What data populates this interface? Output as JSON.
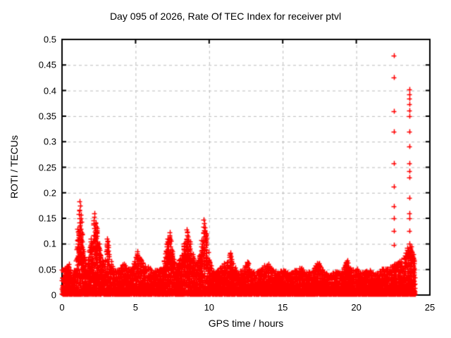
{
  "page": {
    "background": "#ffffff"
  },
  "chart_data": {
    "type": "scatter",
    "title": "Day 095 of 2026, Rate Of TEC Index for receiver ptvl",
    "xlabel": "GPS time / hours",
    "ylabel": "ROTI / TECUs",
    "xlim": [
      0,
      25
    ],
    "ylim": [
      0,
      0.5
    ],
    "xticks": [
      {
        "v": 0,
        "label": "0"
      },
      {
        "v": 5,
        "label": "5"
      },
      {
        "v": 10,
        "label": "10"
      },
      {
        "v": 15,
        "label": "15"
      },
      {
        "v": 20,
        "label": "20"
      },
      {
        "v": 25,
        "label": "25"
      }
    ],
    "yticks": [
      {
        "v": 0,
        "label": "0"
      },
      {
        "v": 0.05,
        "label": "0.05"
      },
      {
        "v": 0.1,
        "label": "0.1"
      },
      {
        "v": 0.15,
        "label": "0.15"
      },
      {
        "v": 0.2,
        "label": "0.2"
      },
      {
        "v": 0.25,
        "label": "0.25"
      },
      {
        "v": 0.3,
        "label": "0.3"
      },
      {
        "v": 0.35,
        "label": "0.35"
      },
      {
        "v": 0.4,
        "label": "0.4"
      },
      {
        "v": 0.45,
        "label": "0.45"
      },
      {
        "v": 0.5,
        "label": "0.5"
      }
    ],
    "grid": {
      "show": true,
      "style": "dashed",
      "color": "#bbbbbb"
    },
    "border_color": "#000000",
    "marker": {
      "shape": "plus",
      "color": "#ff0000",
      "size": 7
    },
    "series_name": "ROTI",
    "scatter": {
      "seed": 95,
      "n_points": 9000,
      "power": 2.2,
      "t_range": [
        0,
        24
      ],
      "y_floor": 0.002,
      "envelope": [
        [
          0.0,
          0.05
        ],
        [
          0.3,
          0.058
        ],
        [
          0.5,
          0.062
        ],
        [
          0.7,
          0.04
        ],
        [
          0.9,
          0.06
        ],
        [
          1.1,
          0.13
        ],
        [
          1.2,
          0.183
        ],
        [
          1.3,
          0.15
        ],
        [
          1.45,
          0.09
        ],
        [
          1.6,
          0.055
        ],
        [
          1.8,
          0.075
        ],
        [
          2.0,
          0.11
        ],
        [
          2.2,
          0.16
        ],
        [
          2.35,
          0.14
        ],
        [
          2.5,
          0.1
        ],
        [
          2.7,
          0.07
        ],
        [
          2.9,
          0.06
        ],
        [
          3.1,
          0.11
        ],
        [
          3.3,
          0.07
        ],
        [
          3.6,
          0.05
        ],
        [
          3.9,
          0.055
        ],
        [
          4.2,
          0.063
        ],
        [
          4.5,
          0.05
        ],
        [
          4.8,
          0.055
        ],
        [
          5.1,
          0.085
        ],
        [
          5.4,
          0.07
        ],
        [
          5.7,
          0.06
        ],
        [
          6.0,
          0.052
        ],
        [
          6.3,
          0.048
        ],
        [
          6.6,
          0.05
        ],
        [
          6.9,
          0.055
        ],
        [
          7.2,
          0.11
        ],
        [
          7.35,
          0.122
        ],
        [
          7.5,
          0.085
        ],
        [
          7.7,
          0.06
        ],
        [
          8.0,
          0.07
        ],
        [
          8.3,
          0.1
        ],
        [
          8.5,
          0.128
        ],
        [
          8.7,
          0.105
        ],
        [
          8.9,
          0.08
        ],
        [
          9.1,
          0.06
        ],
        [
          9.4,
          0.08
        ],
        [
          9.65,
          0.147
        ],
        [
          9.8,
          0.12
        ],
        [
          10.0,
          0.07
        ],
        [
          10.3,
          0.05
        ],
        [
          10.6,
          0.048
        ],
        [
          10.9,
          0.058
        ],
        [
          11.2,
          0.07
        ],
        [
          11.45,
          0.082
        ],
        [
          11.7,
          0.06
        ],
        [
          12.0,
          0.045
        ],
        [
          12.3,
          0.05
        ],
        [
          12.6,
          0.066
        ],
        [
          12.9,
          0.048
        ],
        [
          13.2,
          0.045
        ],
        [
          13.6,
          0.052
        ],
        [
          14.0,
          0.07
        ],
        [
          14.3,
          0.05
        ],
        [
          14.7,
          0.045
        ],
        [
          15.0,
          0.052
        ],
        [
          15.4,
          0.042
        ],
        [
          15.8,
          0.048
        ],
        [
          16.2,
          0.056
        ],
        [
          16.6,
          0.044
        ],
        [
          17.0,
          0.048
        ],
        [
          17.4,
          0.066
        ],
        [
          17.8,
          0.046
        ],
        [
          18.2,
          0.042
        ],
        [
          18.6,
          0.046
        ],
        [
          19.0,
          0.044
        ],
        [
          19.4,
          0.07
        ],
        [
          19.7,
          0.05
        ],
        [
          20.0,
          0.052
        ],
        [
          20.4,
          0.044
        ],
        [
          20.8,
          0.05
        ],
        [
          21.2,
          0.046
        ],
        [
          21.6,
          0.05
        ],
        [
          22.0,
          0.052
        ],
        [
          22.4,
          0.058
        ],
        [
          22.8,
          0.064
        ],
        [
          23.2,
          0.075
        ],
        [
          23.5,
          0.092
        ],
        [
          23.7,
          0.095
        ],
        [
          23.9,
          0.08
        ],
        [
          24.0,
          0.07
        ]
      ],
      "spike_tip_threshold": 0.08,
      "outlier_columns": [
        {
          "t": 22.55,
          "values": [
            0.468,
            0.425,
            0.36,
            0.32,
            0.258,
            0.212,
            0.173,
            0.15,
            0.125,
            0.098
          ]
        },
        {
          "t": 23.62,
          "values": [
            0.402,
            0.393,
            0.384,
            0.373,
            0.361,
            0.35,
            0.32,
            0.29,
            0.257,
            0.243,
            0.23,
            0.19,
            0.16,
            0.15,
            0.125,
            0.1
          ]
        }
      ]
    }
  }
}
